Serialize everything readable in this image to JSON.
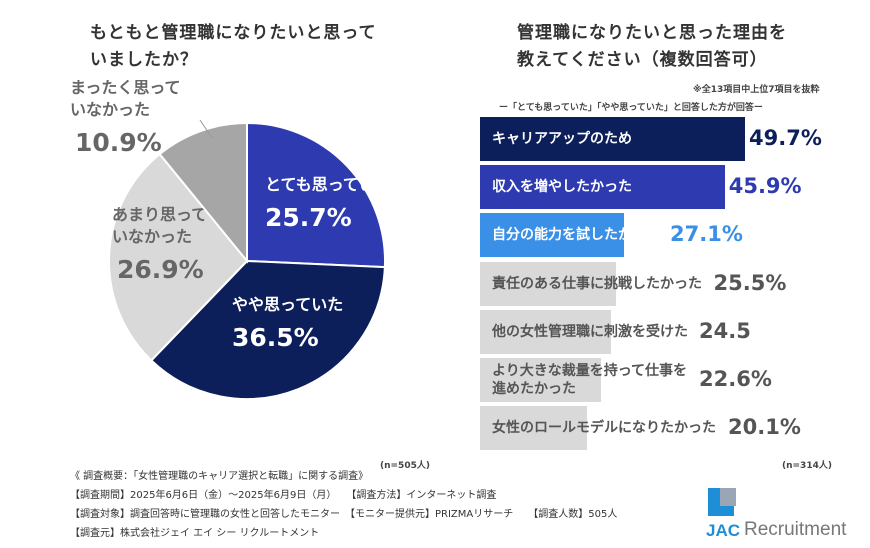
{
  "left": {
    "title_lines": [
      "もともと管理職になりたいと思って",
      "いましたか？"
    ],
    "n": "(n=505人)"
  },
  "right": {
    "title_lines": [
      "管理職になりたいと思った理由を",
      "教えてください（複数回答可）"
    ],
    "note1": "※全13項目中上位7項目を抜粋",
    "note2": "ー「とても思っていた」「やや思っていた」と回答した方が回答ー",
    "n": "(n=314人)"
  },
  "chart_data": [
    {
      "type": "pie",
      "start": "12 o'clock",
      "direction": "clockwise",
      "slices": [
        {
          "label_lines": [
            "とても思っていた"
          ],
          "value": 25.7,
          "display": "25.7%",
          "color": "#2e3bb0",
          "text_color": "#ffffff"
        },
        {
          "label_lines": [
            "やや思っていた"
          ],
          "value": 36.5,
          "display": "36.5%",
          "color": "#0c1f5b",
          "text_color": "#ffffff"
        },
        {
          "label_lines": [
            "あまり思って",
            "いなかった"
          ],
          "value": 26.9,
          "display": "26.9%",
          "color": "#d9d9d9",
          "text_color": "#666666"
        },
        {
          "label_lines": [
            "まったく思って",
            "いなかった"
          ],
          "value": 10.9,
          "display": "10.9%",
          "color": "#a6a6a6",
          "text_color": "#666666"
        }
      ]
    },
    {
      "type": "bar",
      "orientation": "horizontal",
      "bars": [
        {
          "label_lines": [
            "キャリアアップのため"
          ],
          "value": 49.7,
          "display": "49.7%",
          "color": "#0c1f5b",
          "text_color": "#ffffff",
          "value_color": "#0c1f5b"
        },
        {
          "label_lines": [
            "収入を増やしたかった"
          ],
          "value": 45.9,
          "display": "45.9%",
          "color": "#2e3bb0",
          "text_color": "#ffffff",
          "value_color": "#2e3bb0"
        },
        {
          "label_lines": [
            "自分の能力を試したかった"
          ],
          "value": 27.1,
          "display": "27.1%",
          "color": "#3a8fe6",
          "text_color": "#ffffff",
          "value_color": "#3a8fe6"
        },
        {
          "label_lines": [
            "責任のある仕事に挑戦したかった"
          ],
          "value": 25.5,
          "display": "25.5%",
          "color": "#d9d9d9",
          "text_color": "#555555",
          "value_color": "#555555"
        },
        {
          "label_lines": [
            "他の女性管理職に刺激を受けた"
          ],
          "value": 24.5,
          "display": "24.5",
          "color": "#d9d9d9",
          "text_color": "#555555",
          "value_color": "#555555"
        },
        {
          "label_lines": [
            "より大きな裁量を持って仕事を",
            "進めたかった"
          ],
          "value": 22.6,
          "display": "22.6%",
          "color": "#d9d9d9",
          "text_color": "#555555",
          "value_color": "#555555"
        },
        {
          "label_lines": [
            "女性のロールモデルになりたかった"
          ],
          "value": 20.1,
          "display": "20.1%",
          "color": "#d9d9d9",
          "text_color": "#555555",
          "value_color": "#555555"
        }
      ]
    }
  ],
  "footer": [
    "《 調査概要：「女性管理職のキャリア選択と転職」に関する調査》",
    "【調査期間】2025年6月6日（金）～2025年6月9日（月）　　【調査方法】インターネット調査",
    "【調査対象】調査回答時に管理職の女性と回答したモニター　【モニター提供元】PRIZMAリサーチ　　【調査人数】505人",
    "【調査元】株式会社ジェイ エイ シー リクルートメント"
  ],
  "logo": {
    "mark": "JAC",
    "text": "Recruitment",
    "color": "#1e8fd6"
  }
}
